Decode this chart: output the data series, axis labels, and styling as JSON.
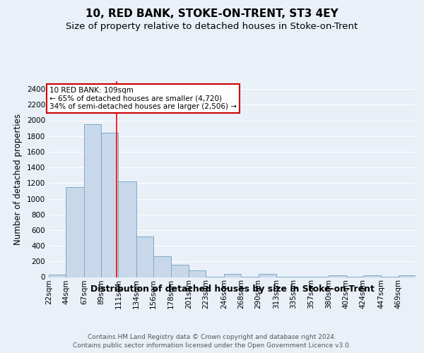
{
  "title": "10, RED BANK, STOKE-ON-TRENT, ST3 4EY",
  "subtitle": "Size of property relative to detached houses in Stoke-on-Trent",
  "xlabel": "Distribution of detached houses by size in Stoke-on-Trent",
  "ylabel": "Number of detached properties",
  "bin_labels": [
    "22sqm",
    "44sqm",
    "67sqm",
    "89sqm",
    "111sqm",
    "134sqm",
    "156sqm",
    "178sqm",
    "201sqm",
    "223sqm",
    "246sqm",
    "268sqm",
    "290sqm",
    "313sqm",
    "335sqm",
    "357sqm",
    "380sqm",
    "402sqm",
    "424sqm",
    "447sqm",
    "469sqm"
  ],
  "bin_edges": [
    22,
    44,
    67,
    89,
    111,
    134,
    156,
    178,
    201,
    223,
    246,
    268,
    290,
    313,
    335,
    357,
    380,
    402,
    424,
    447,
    469,
    491
  ],
  "values": [
    30,
    1150,
    1950,
    1840,
    1220,
    520,
    265,
    155,
    85,
    5,
    45,
    5,
    40,
    5,
    5,
    5,
    25,
    5,
    20,
    5,
    20
  ],
  "bar_color": "#c8d8ea",
  "bar_edge_color": "#7aaac8",
  "red_line_x": 109,
  "annotation_title": "10 RED BANK: 109sqm",
  "annotation_line1": "← 65% of detached houses are smaller (4,720)",
  "annotation_line2": "34% of semi-detached houses are larger (2,506) →",
  "annotation_box_color": "#ffffff",
  "annotation_box_edge": "#cc0000",
  "ylim": [
    0,
    2500
  ],
  "yticks": [
    0,
    200,
    400,
    600,
    800,
    1000,
    1200,
    1400,
    1600,
    1800,
    2000,
    2200,
    2400
  ],
  "bg_color": "#eaf0f8",
  "plot_bg_color": "#eaf0f8",
  "grid_color": "#ffffff",
  "footer_line1": "Contains HM Land Registry data © Crown copyright and database right 2024.",
  "footer_line2": "Contains public sector information licensed under the Open Government Licence v3.0.",
  "title_fontsize": 11,
  "subtitle_fontsize": 9.5,
  "xlabel_fontsize": 9,
  "ylabel_fontsize": 8.5,
  "tick_fontsize": 7.5,
  "footer_fontsize": 6.5
}
